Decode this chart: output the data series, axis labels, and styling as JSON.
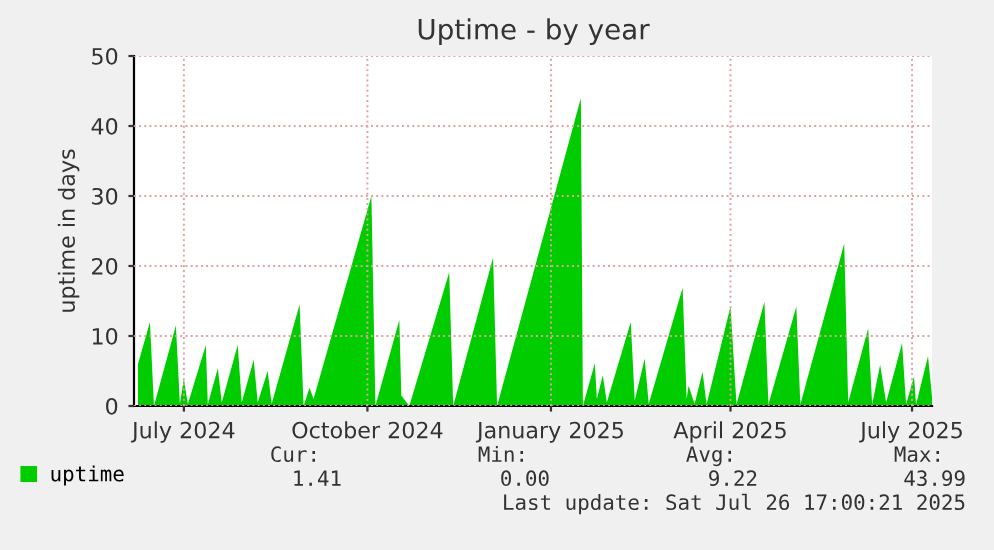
{
  "chart_data": {
    "type": "area",
    "title": "Uptime - by year",
    "ylabel": "uptime in days",
    "x": [
      "2024-06-23",
      "2024-06-29",
      "2024-07-01",
      "2024-07-12",
      "2024-07-14",
      "2024-07-16",
      "2024-07-18",
      "2024-07-27",
      "2024-07-28",
      "2024-08-02",
      "2024-08-04",
      "2024-08-12",
      "2024-08-14",
      "2024-08-20",
      "2024-08-22",
      "2024-08-27",
      "2024-08-29",
      "2024-09-12",
      "2024-09-14",
      "2024-09-17",
      "2024-09-19",
      "2024-10-18",
      "2024-10-20",
      "2024-11-01",
      "2024-11-02",
      "2024-11-06",
      "2024-11-26",
      "2024-11-28",
      "2024-12-18",
      "2024-12-20",
      "2025-01-31",
      "2025-02-01",
      "2025-02-07",
      "2025-02-08",
      "2025-02-11",
      "2025-02-13",
      "2025-02-25",
      "2025-02-27",
      "2025-03-04",
      "2025-03-06",
      "2025-03-23",
      "2025-03-25",
      "2025-03-26",
      "2025-03-29",
      "2025-04-02",
      "2025-04-04",
      "2025-04-16",
      "2025-04-19",
      "2025-05-03",
      "2025-05-05",
      "2025-05-19",
      "2025-05-21",
      "2025-06-12",
      "2025-06-14",
      "2025-06-24",
      "2025-06-26",
      "2025-06-30",
      "2025-07-03",
      "2025-07-11",
      "2025-07-13",
      "2025-07-17",
      "2025-07-18",
      "2025-07-24",
      "2025-07-26"
    ],
    "series": [
      {
        "name": "uptime",
        "color": "#00cc00",
        "values": [
          6,
          12,
          0,
          11.5,
          0.3,
          3.9,
          0.3,
          8.7,
          0.2,
          5.4,
          0.5,
          8.7,
          0.5,
          6.6,
          0.5,
          5,
          0.3,
          14.5,
          0,
          2.6,
          1,
          30,
          0,
          12.3,
          1.5,
          0,
          19.1,
          0,
          21.2,
          0,
          44,
          0,
          6.1,
          1,
          4.4,
          0.5,
          12,
          0.8,
          6.8,
          0.3,
          16.9,
          1,
          2.9,
          0.3,
          4.9,
          0.2,
          14.2,
          0.2,
          14.9,
          0.2,
          14.2,
          0.2,
          23.2,
          0.5,
          11.1,
          0.2,
          5.9,
          0.5,
          9,
          0.2,
          4.2,
          0.2,
          7.1,
          1.41
        ]
      }
    ],
    "xlim": [
      "2024-06-21",
      "2025-07-26"
    ],
    "xticks": [
      {
        "value": "2024-07-16",
        "label": "July 2024"
      },
      {
        "value": "2024-10-16",
        "label": "October 2024"
      },
      {
        "value": "2025-01-16",
        "label": "January 2025"
      },
      {
        "value": "2025-04-16",
        "label": "April 2025"
      },
      {
        "value": "2025-07-16",
        "label": "July 2025"
      }
    ],
    "ylim": [
      0,
      50
    ],
    "yticks": [
      0,
      10,
      20,
      30,
      40,
      50
    ],
    "grid": true,
    "legend": "bottom left",
    "annotations": [
      "Cur:",
      "Min:",
      "Avg:",
      "Max:",
      "1.41",
      "0.00",
      "9.22",
      "43.99",
      "Last update: Sat Jul 26 17:00:21 2025"
    ]
  }
}
